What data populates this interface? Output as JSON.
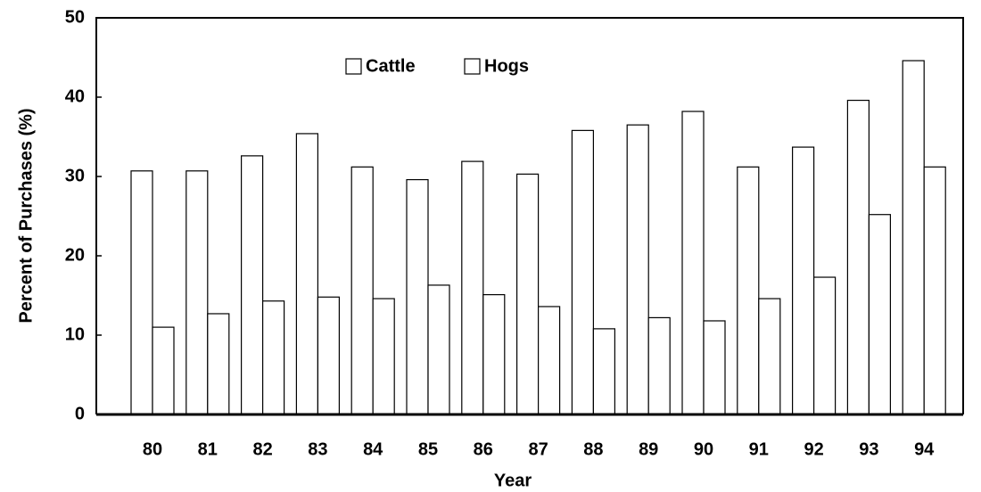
{
  "chart_data": {
    "type": "bar",
    "x_label": "Year",
    "y_label": "Percent of Purchases (%)",
    "categories": [
      "80",
      "81",
      "82",
      "83",
      "84",
      "85",
      "86",
      "87",
      "88",
      "89",
      "90",
      "91",
      "92",
      "93",
      "94"
    ],
    "series": [
      {
        "name": "Cattle",
        "color": "#ffffff",
        "values": [
          30.7,
          30.7,
          32.6,
          35.4,
          31.2,
          29.6,
          31.9,
          30.3,
          35.8,
          36.5,
          38.2,
          31.2,
          33.7,
          39.6,
          44.6
        ]
      },
      {
        "name": "Hogs",
        "color": "#ffffff",
        "values": [
          11.0,
          12.7,
          14.3,
          14.8,
          14.6,
          16.3,
          15.1,
          13.6,
          10.8,
          12.2,
          11.8,
          14.6,
          17.3,
          25.2,
          31.2
        ]
      }
    ],
    "ylim": [
      0,
      50
    ],
    "yticks": [
      0,
      10,
      20,
      30,
      40,
      50
    ],
    "grid": false,
    "legend": "top"
  }
}
